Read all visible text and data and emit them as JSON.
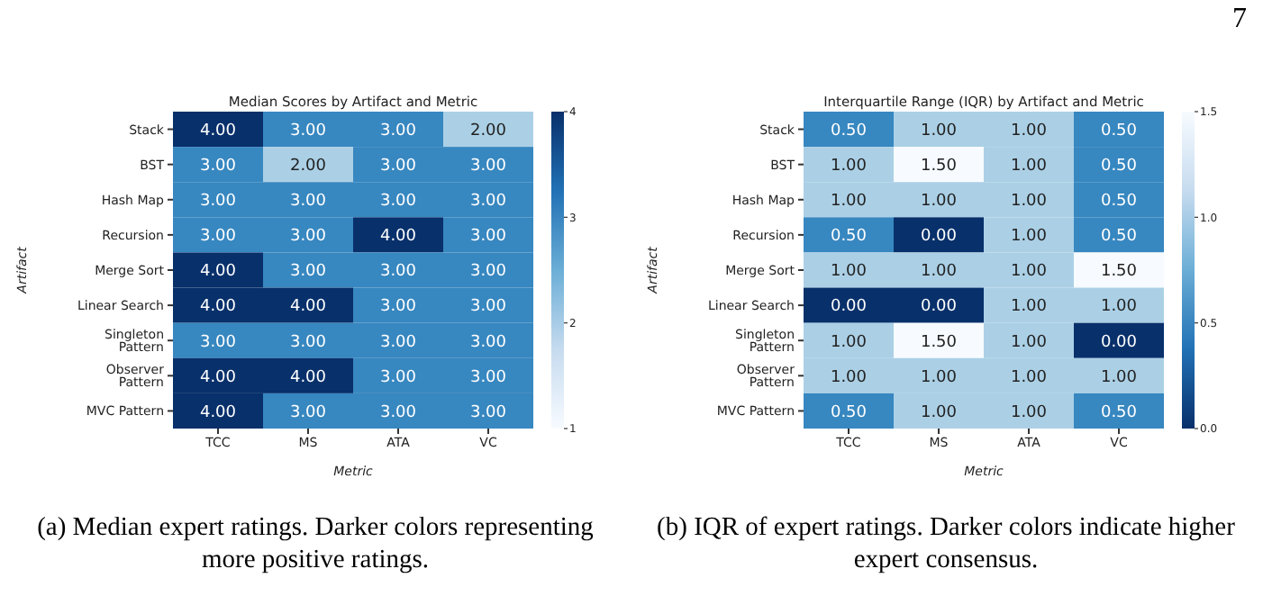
{
  "chart_data": [
    {
      "type": "heatmap",
      "title": "Median Scores by Artifact and Metric",
      "xlabel": "Metric",
      "ylabel": "Artifact",
      "categories": [
        "TCC",
        "MS",
        "ATA",
        "VC"
      ],
      "y_categories": [
        "Stack",
        "BST",
        "Hash Map",
        "Recursion",
        "Merge Sort",
        "Linear Search",
        "Singleton Pattern",
        "Observer Pattern",
        "MVC Pattern"
      ],
      "cells": [
        [
          4,
          3,
          3,
          2
        ],
        [
          3,
          2,
          3,
          3
        ],
        [
          3,
          3,
          3,
          3
        ],
        [
          3,
          3,
          4,
          3
        ],
        [
          4,
          3,
          3,
          3
        ],
        [
          4,
          4,
          3,
          3
        ],
        [
          3,
          3,
          3,
          3
        ],
        [
          4,
          4,
          3,
          3
        ],
        [
          4,
          3,
          3,
          3
        ]
      ],
      "cell_labels": [
        [
          "4.00",
          "3.00",
          "3.00",
          "2.00"
        ],
        [
          "3.00",
          "2.00",
          "3.00",
          "3.00"
        ],
        [
          "3.00",
          "3.00",
          "3.00",
          "3.00"
        ],
        [
          "3.00",
          "3.00",
          "4.00",
          "3.00"
        ],
        [
          "4.00",
          "3.00",
          "3.00",
          "3.00"
        ],
        [
          "4.00",
          "4.00",
          "3.00",
          "3.00"
        ],
        [
          "3.00",
          "3.00",
          "3.00",
          "3.00"
        ],
        [
          "4.00",
          "4.00",
          "3.00",
          "3.00"
        ],
        [
          "4.00",
          "3.00",
          "3.00",
          "3.00"
        ]
      ],
      "clim": [
        1,
        4
      ],
      "cticks": [
        1,
        2,
        3,
        4
      ],
      "annotations": [
        "(a) Median expert ratings. Darker colors representing more positive ratings."
      ]
    },
    {
      "type": "heatmap",
      "title": "Interquartile Range (IQR) by Artifact and Metric",
      "xlabel": "Metric",
      "ylabel": "Artifact",
      "categories": [
        "TCC",
        "MS",
        "ATA",
        "VC"
      ],
      "y_categories": [
        "Stack",
        "BST",
        "Hash Map",
        "Recursion",
        "Merge Sort",
        "Linear Search",
        "Singleton Pattern",
        "Observer Pattern",
        "MVC Pattern"
      ],
      "cells": [
        [
          0.5,
          1,
          1,
          0.5
        ],
        [
          1,
          1.5,
          1,
          0.5
        ],
        [
          1,
          1,
          1,
          0.5
        ],
        [
          0.5,
          0,
          1,
          0.5
        ],
        [
          1,
          1,
          1,
          1.5
        ],
        [
          0,
          0,
          1,
          1
        ],
        [
          1,
          1.5,
          1,
          0
        ],
        [
          1,
          1,
          1,
          1
        ],
        [
          0.5,
          1,
          1,
          0.5
        ]
      ],
      "cell_labels": [
        [
          "0.50",
          "1.00",
          "1.00",
          "0.50"
        ],
        [
          "1.00",
          "1.50",
          "1.00",
          "0.50"
        ],
        [
          "1.00",
          "1.00",
          "1.00",
          "0.50"
        ],
        [
          "0.50",
          "0.00",
          "1.00",
          "0.50"
        ],
        [
          "1.00",
          "1.00",
          "1.00",
          "1.50"
        ],
        [
          "0.00",
          "0.00",
          "1.00",
          "1.00"
        ],
        [
          "1.00",
          "1.50",
          "1.00",
          "0.00"
        ],
        [
          "1.00",
          "1.00",
          "1.00",
          "1.00"
        ],
        [
          "0.50",
          "1.00",
          "1.00",
          "0.50"
        ]
      ],
      "clim": [
        1.5,
        0
      ],
      "cticks": [
        {
          "value": 0,
          "label": "0.0"
        },
        {
          "value": 0.5,
          "label": "0.5"
        },
        {
          "value": 1,
          "label": "1.0"
        },
        {
          "value": 1.5,
          "label": "1.5"
        }
      ],
      "annotations": [
        "(b) IQR of expert ratings. Darker colors indicate higher expert consensus.",
        "7"
      ]
    }
  ]
}
